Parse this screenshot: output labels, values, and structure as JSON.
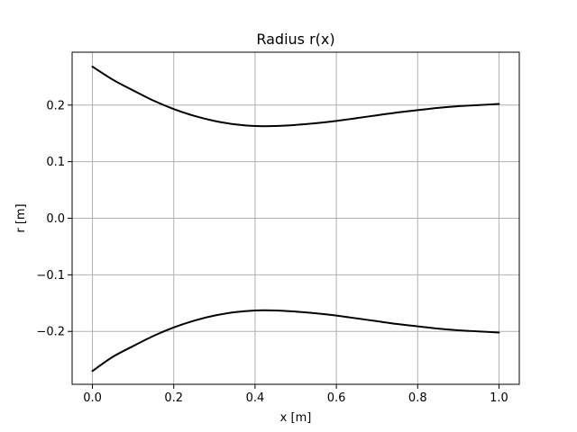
{
  "chart_data": {
    "type": "line",
    "title": "Radius r(x)",
    "xlabel": "x [m]",
    "ylabel": "r [m]",
    "xlim": [
      -0.05,
      1.05
    ],
    "ylim": [
      -0.2935,
      0.2935
    ],
    "xticks": [
      0.0,
      0.2,
      0.4,
      0.6,
      0.8,
      1.0
    ],
    "xtick_labels": [
      "0.0",
      "0.2",
      "0.4",
      "0.6",
      "0.8",
      "1.0"
    ],
    "yticks": [
      -0.2,
      -0.1,
      0.0,
      0.1,
      0.2
    ],
    "ytick_labels": [
      "−0.2",
      "−0.1",
      "0.0",
      "0.1",
      "0.2"
    ],
    "grid": true,
    "legend": "none",
    "line_color": "#000000",
    "series": [
      {
        "x": [
          0.0,
          0.05,
          0.1,
          0.15,
          0.2,
          0.25,
          0.3,
          0.35,
          0.4,
          0.45,
          0.5,
          0.55,
          0.6,
          0.65,
          0.7,
          0.75,
          0.8,
          0.85,
          0.9,
          0.95,
          1.0
        ],
        "y": [
          0.268,
          0.245,
          0.226,
          0.208,
          0.193,
          0.181,
          0.172,
          0.166,
          0.163,
          0.163,
          0.165,
          0.168,
          0.172,
          0.177,
          0.182,
          0.187,
          0.191,
          0.195,
          0.198,
          0.2,
          0.202
        ]
      },
      {
        "x": [
          0.0,
          0.05,
          0.1,
          0.15,
          0.2,
          0.25,
          0.3,
          0.35,
          0.4,
          0.45,
          0.5,
          0.55,
          0.6,
          0.65,
          0.7,
          0.75,
          0.8,
          0.85,
          0.9,
          0.95,
          1.0
        ],
        "y": [
          -0.27,
          -0.245,
          -0.226,
          -0.208,
          -0.193,
          -0.181,
          -0.172,
          -0.166,
          -0.163,
          -0.163,
          -0.165,
          -0.168,
          -0.172,
          -0.177,
          -0.182,
          -0.187,
          -0.191,
          -0.195,
          -0.198,
          -0.2,
          -0.202
        ]
      }
    ]
  }
}
